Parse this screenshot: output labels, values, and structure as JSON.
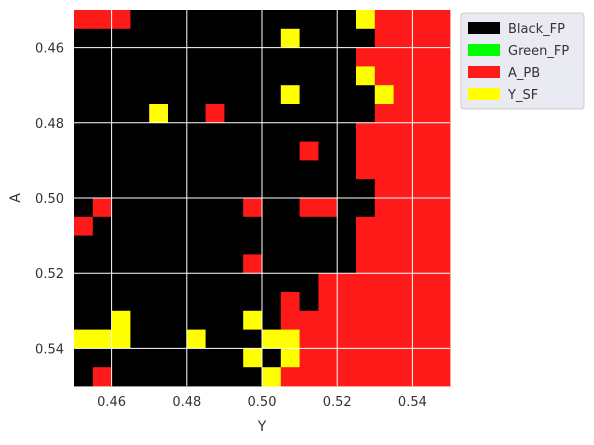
{
  "chart_data": {
    "type": "heatmap",
    "title": "",
    "xlabel": "Y",
    "ylabel": "A",
    "xlim": [
      0.45,
      0.55
    ],
    "ylim": [
      0.55,
      0.45
    ],
    "grid_size": 20,
    "cell_size": 0.005,
    "x_ticks": [
      0.46,
      0.48,
      0.5,
      0.52,
      0.54
    ],
    "x_tick_labels": [
      "0.46",
      "0.48",
      "0.50",
      "0.52",
      "0.54"
    ],
    "y_ticks": [
      0.46,
      0.48,
      0.5,
      0.52,
      0.54
    ],
    "y_tick_labels": [
      "0.46",
      "0.48",
      "0.50",
      "0.52",
      "0.54"
    ],
    "grid": true,
    "legend_position": "outside-upper-right",
    "categories": [
      "Black_FP",
      "Green_FP",
      "A_PB",
      "Y_SF"
    ],
    "colors": {
      "Black_FP": "#000000",
      "Green_FP": "#00ff00",
      "A_PB": "#ff1a1a",
      "Y_SF": "#ffff00"
    },
    "cell_codes": {
      "K": "Black_FP",
      "G": "Green_FP",
      "R": "A_PB",
      "Y": "Y_SF"
    },
    "grid_rows": [
      "RRRKKKKKKKKKKKKYRRRR",
      "KKKKKKKKKKKYKKKKRRRR",
      "KKKKKKKKKKKKKKKRRRRR",
      "KKKKKKKKKKKKKKKYRRRR",
      "KKKKKKKKKKKYKKKKYRRR",
      "KKKKYKKRKKKKKKKKRRRR",
      "KKKKKKKKKKKKKKKRRRRR",
      "KKKKKKKKKKKKRKKRRRRR",
      "KKKKKKKKKKKKKKKRRRRR",
      "KKKKKKKKKKKKKKKKRRRR",
      "KRKKKKKKKRKKRRKKRRRR",
      "RKKKKKKKKKKKKKKRRRRR",
      "KKKKKKKKKKKKKKKRRRRR",
      "KKKKKKKKKRKKKKKRRRRR",
      "KKKKKKKKKKKKKRRRRRRR",
      "KKKKKKKKKKKRKRRRRRRR",
      "KKYKKKKKKYKRRRRRRRRR",
      "YYYKKKYKKKYYRRRRRRRR",
      "KKKKKKKKKYKYRRRRRRRR",
      "KRKKKKKKKKYRRRRRRRRR"
    ]
  }
}
